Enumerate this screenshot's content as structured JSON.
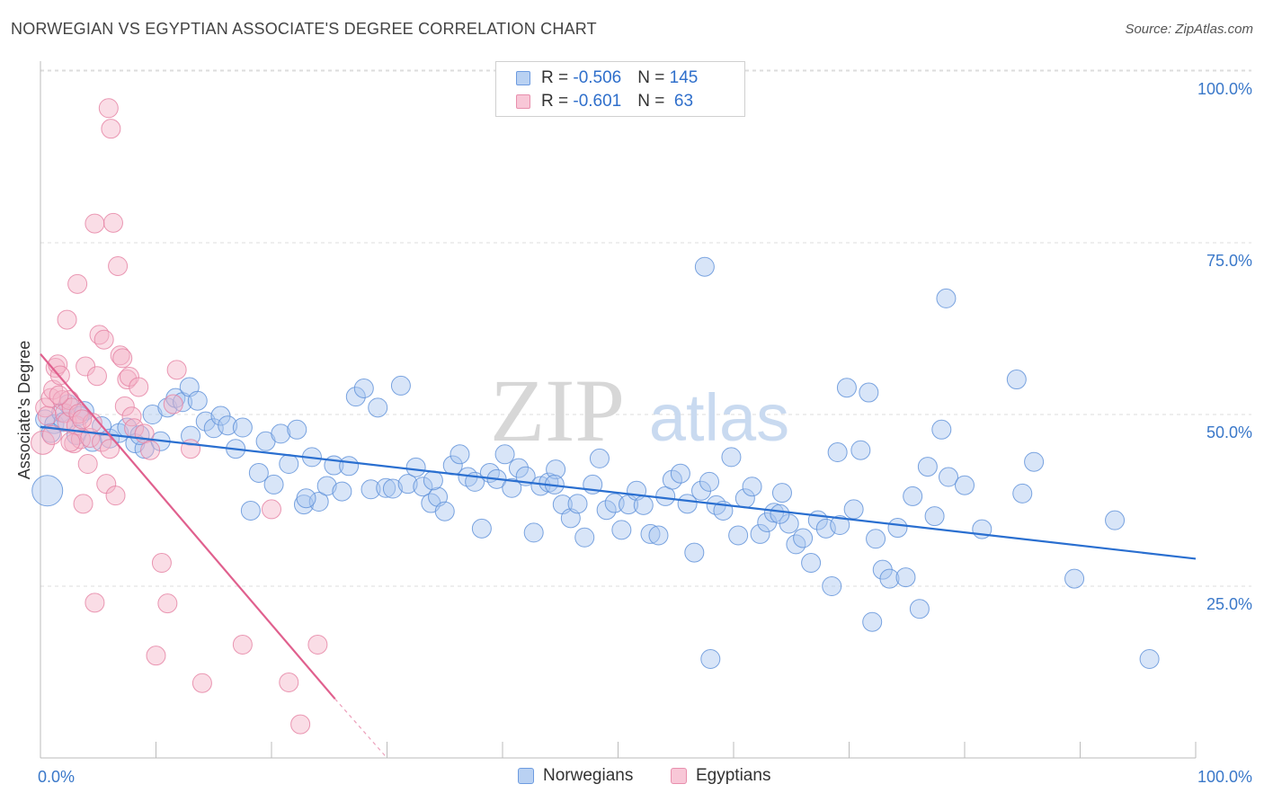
{
  "header": {
    "title": "NORWEGIAN VS EGYPTIAN ASSOCIATE'S DEGREE CORRELATION CHART",
    "source": "Source: ZipAtlas.com"
  },
  "legend": {
    "rows": [
      {
        "r_label": "R = ",
        "r_value": "-0.506",
        "n_label": "N = ",
        "n_value": "145"
      },
      {
        "r_label": "R = ",
        "r_value": "-0.601",
        "n_label": "N = ",
        "n_value": " 63"
      }
    ]
  },
  "watermark": {
    "zip": "ZIP",
    "atlas": "atlas"
  },
  "colors": {
    "norwegians_fill": "#a9c6ef",
    "norwegians_stroke": "#5b8fd8",
    "norwegians_line": "#2a6fd0",
    "egyptians_fill": "#f5b3c8",
    "egyptians_stroke": "#e57fa1",
    "egyptians_line": "#e0608e",
    "tick_label": "#3a78c9"
  },
  "chart_data": {
    "type": "scatter",
    "title": "NORWEGIAN VS EGYPTIAN ASSOCIATE'S DEGREE CORRELATION CHART",
    "xlabel": "",
    "ylabel": "Associate's Degree",
    "xlim": [
      0,
      100
    ],
    "ylim": [
      0,
      100
    ],
    "x_tick_labels": [
      "0.0%",
      "100.0%"
    ],
    "y_ticks": [
      25,
      50,
      75,
      100
    ],
    "y_tick_labels": [
      "25.0%",
      "50.0%",
      "75.0%",
      "100.0%"
    ],
    "grid": true,
    "legend_position": "bottom-center",
    "series": [
      {
        "name": "Norwegians",
        "r": -0.506,
        "n": 145,
        "trend": {
          "x": [
            0,
            100
          ],
          "y": [
            48.2,
            29.0
          ]
        },
        "points": [
          [
            0.4,
            49.3
          ],
          [
            1.2,
            48.6
          ],
          [
            1.8,
            50.3
          ],
          [
            2.4,
            51.5
          ],
          [
            3.1,
            47.0
          ],
          [
            3.8,
            50.5
          ],
          [
            4.5,
            46.0
          ],
          [
            5.3,
            48.3
          ],
          [
            6.0,
            46.5
          ],
          [
            6.8,
            47.3
          ],
          [
            7.5,
            48.1
          ],
          [
            8.2,
            45.8
          ],
          [
            9.0,
            45.0
          ],
          [
            9.7,
            50.0
          ],
          [
            10.4,
            46.1
          ],
          [
            11.0,
            51.0
          ],
          [
            11.7,
            52.4
          ],
          [
            12.3,
            51.8
          ],
          [
            12.9,
            54.0
          ],
          [
            13.6,
            52.0
          ],
          [
            14.3,
            49.0
          ],
          [
            15.0,
            48.0
          ],
          [
            15.6,
            49.8
          ],
          [
            16.2,
            48.4
          ],
          [
            16.9,
            45.0
          ],
          [
            17.5,
            48.1
          ],
          [
            18.2,
            36.0
          ],
          [
            18.9,
            41.5
          ],
          [
            19.5,
            46.1
          ],
          [
            20.2,
            39.8
          ],
          [
            20.8,
            47.2
          ],
          [
            21.5,
            42.8
          ],
          [
            22.2,
            47.8
          ],
          [
            22.8,
            36.9
          ],
          [
            23.5,
            43.8
          ],
          [
            24.1,
            37.3
          ],
          [
            24.8,
            39.6
          ],
          [
            25.4,
            42.6
          ],
          [
            26.1,
            38.8
          ],
          [
            26.7,
            42.5
          ],
          [
            27.3,
            52.6
          ],
          [
            28.0,
            53.8
          ],
          [
            28.6,
            39.1
          ],
          [
            29.2,
            51.0
          ],
          [
            29.9,
            39.3
          ],
          [
            30.5,
            39.2
          ],
          [
            31.2,
            54.2
          ],
          [
            31.8,
            39.9
          ],
          [
            32.5,
            42.3
          ],
          [
            33.1,
            39.5
          ],
          [
            33.8,
            37.1
          ],
          [
            34.4,
            38.0
          ],
          [
            35.0,
            35.9
          ],
          [
            35.7,
            42.6
          ],
          [
            36.3,
            44.2
          ],
          [
            37.0,
            40.9
          ],
          [
            37.6,
            40.2
          ],
          [
            38.2,
            33.4
          ],
          [
            38.9,
            41.5
          ],
          [
            39.5,
            40.6
          ],
          [
            40.2,
            44.2
          ],
          [
            40.8,
            39.3
          ],
          [
            41.4,
            42.2
          ],
          [
            42.0,
            41.0
          ],
          [
            42.7,
            32.8
          ],
          [
            43.3,
            39.6
          ],
          [
            44.0,
            40.1
          ],
          [
            44.6,
            42.0
          ],
          [
            45.2,
            36.9
          ],
          [
            45.9,
            34.9
          ],
          [
            46.5,
            37.0
          ],
          [
            47.1,
            32.1
          ],
          [
            47.8,
            39.8
          ],
          [
            48.4,
            43.6
          ],
          [
            49.0,
            36.1
          ],
          [
            49.7,
            37.1
          ],
          [
            50.3,
            33.2
          ],
          [
            50.9,
            36.9
          ],
          [
            51.6,
            38.9
          ],
          [
            52.2,
            36.8
          ],
          [
            52.8,
            32.6
          ],
          [
            53.5,
            32.4
          ],
          [
            54.1,
            38.1
          ],
          [
            54.7,
            40.5
          ],
          [
            55.4,
            41.4
          ],
          [
            56.0,
            37.0
          ],
          [
            56.6,
            29.9
          ],
          [
            57.2,
            38.9
          ],
          [
            57.9,
            40.2
          ],
          [
            58.5,
            36.8
          ],
          [
            59.1,
            36.0
          ],
          [
            59.8,
            43.8
          ],
          [
            60.4,
            32.4
          ],
          [
            61.0,
            37.8
          ],
          [
            61.6,
            39.5
          ],
          [
            62.3,
            32.6
          ],
          [
            62.9,
            34.3
          ],
          [
            63.5,
            35.7
          ],
          [
            64.2,
            38.6
          ],
          [
            64.8,
            34.1
          ],
          [
            65.4,
            31.1
          ],
          [
            66.0,
            32.0
          ],
          [
            66.7,
            28.4
          ],
          [
            67.3,
            34.6
          ],
          [
            68.0,
            33.4
          ],
          [
            68.5,
            25.0
          ],
          [
            69.2,
            33.9
          ],
          [
            69.8,
            53.9
          ],
          [
            70.4,
            36.2
          ],
          [
            71.0,
            44.8
          ],
          [
            71.7,
            53.2
          ],
          [
            72.3,
            31.9
          ],
          [
            72.9,
            27.4
          ],
          [
            73.5,
            26.1
          ],
          [
            74.2,
            33.5
          ],
          [
            74.9,
            26.3
          ],
          [
            75.5,
            38.1
          ],
          [
            76.1,
            21.7
          ],
          [
            76.8,
            42.4
          ],
          [
            77.4,
            35.2
          ],
          [
            78.0,
            47.8
          ],
          [
            78.6,
            40.9
          ],
          [
            80.0,
            39.7
          ],
          [
            81.5,
            33.3
          ],
          [
            85.0,
            38.5
          ],
          [
            86.0,
            43.1
          ],
          [
            89.5,
            26.1
          ],
          [
            93.0,
            34.6
          ],
          [
            58.0,
            14.4
          ],
          [
            72.0,
            19.8
          ],
          [
            78.4,
            66.9
          ],
          [
            57.5,
            71.5
          ],
          [
            84.5,
            55.1
          ],
          [
            96.0,
            14.4
          ],
          [
            69.0,
            44.5
          ],
          [
            64.0,
            35.5
          ],
          [
            44.5,
            39.8
          ],
          [
            34.0,
            40.4
          ],
          [
            23.0,
            37.8
          ],
          [
            13.0,
            46.9
          ],
          [
            8.6,
            47.0
          ],
          [
            3.4,
            49.8
          ],
          [
            2.0,
            48.9
          ],
          [
            0.9,
            47.3
          ],
          [
            0.6,
            38.9
          ]
        ]
      },
      {
        "name": "Egyptians",
        "r": -0.601,
        "n": 63,
        "trend": {
          "x": [
            0,
            25.5
          ],
          "y": [
            58.8,
            8.6
          ]
        },
        "trend_dashed": {
          "x": [
            25.5,
            30.0
          ],
          "y": [
            8.6,
            0
          ]
        },
        "points": [
          [
            0.2,
            45.9
          ],
          [
            0.4,
            51.0
          ],
          [
            0.6,
            49.8
          ],
          [
            0.9,
            52.4
          ],
          [
            1.1,
            53.6
          ],
          [
            1.3,
            56.8
          ],
          [
            1.5,
            57.3
          ],
          [
            1.7,
            55.7
          ],
          [
            1.9,
            52.1
          ],
          [
            2.1,
            50.2
          ],
          [
            2.3,
            48.9
          ],
          [
            2.5,
            52.1
          ],
          [
            2.7,
            51.0
          ],
          [
            2.9,
            45.8
          ],
          [
            3.1,
            48.4
          ],
          [
            3.3,
            50.1
          ],
          [
            3.5,
            46.4
          ],
          [
            3.7,
            37.0
          ],
          [
            3.9,
            57.0
          ],
          [
            4.1,
            42.8
          ],
          [
            4.3,
            46.6
          ],
          [
            4.5,
            48.8
          ],
          [
            4.7,
            22.6
          ],
          [
            4.9,
            55.6
          ],
          [
            5.1,
            61.6
          ],
          [
            5.3,
            46.0
          ],
          [
            5.5,
            60.9
          ],
          [
            5.7,
            39.9
          ],
          [
            5.9,
            94.6
          ],
          [
            6.1,
            91.6
          ],
          [
            6.3,
            77.9
          ],
          [
            6.5,
            38.2
          ],
          [
            6.7,
            71.6
          ],
          [
            6.9,
            58.6
          ],
          [
            7.1,
            58.2
          ],
          [
            7.3,
            51.2
          ],
          [
            7.5,
            55.1
          ],
          [
            7.7,
            55.5
          ],
          [
            7.9,
            49.7
          ],
          [
            8.1,
            48.0
          ],
          [
            8.5,
            54.0
          ],
          [
            9.0,
            47.2
          ],
          [
            9.5,
            44.8
          ],
          [
            10.0,
            14.9
          ],
          [
            10.5,
            28.4
          ],
          [
            11.0,
            22.5
          ],
          [
            11.5,
            51.5
          ],
          [
            11.8,
            56.5
          ],
          [
            14.0,
            10.9
          ],
          [
            17.5,
            16.5
          ],
          [
            20.0,
            36.2
          ],
          [
            21.5,
            11.0
          ],
          [
            22.5,
            4.9
          ],
          [
            24.0,
            16.5
          ],
          [
            3.2,
            69.0
          ],
          [
            4.7,
            77.8
          ],
          [
            2.3,
            63.8
          ],
          [
            1.0,
            47.0
          ],
          [
            1.6,
            52.8
          ],
          [
            2.6,
            46.0
          ],
          [
            3.6,
            49.3
          ],
          [
            6.0,
            45.0
          ],
          [
            13.0,
            45.0
          ]
        ]
      }
    ]
  }
}
